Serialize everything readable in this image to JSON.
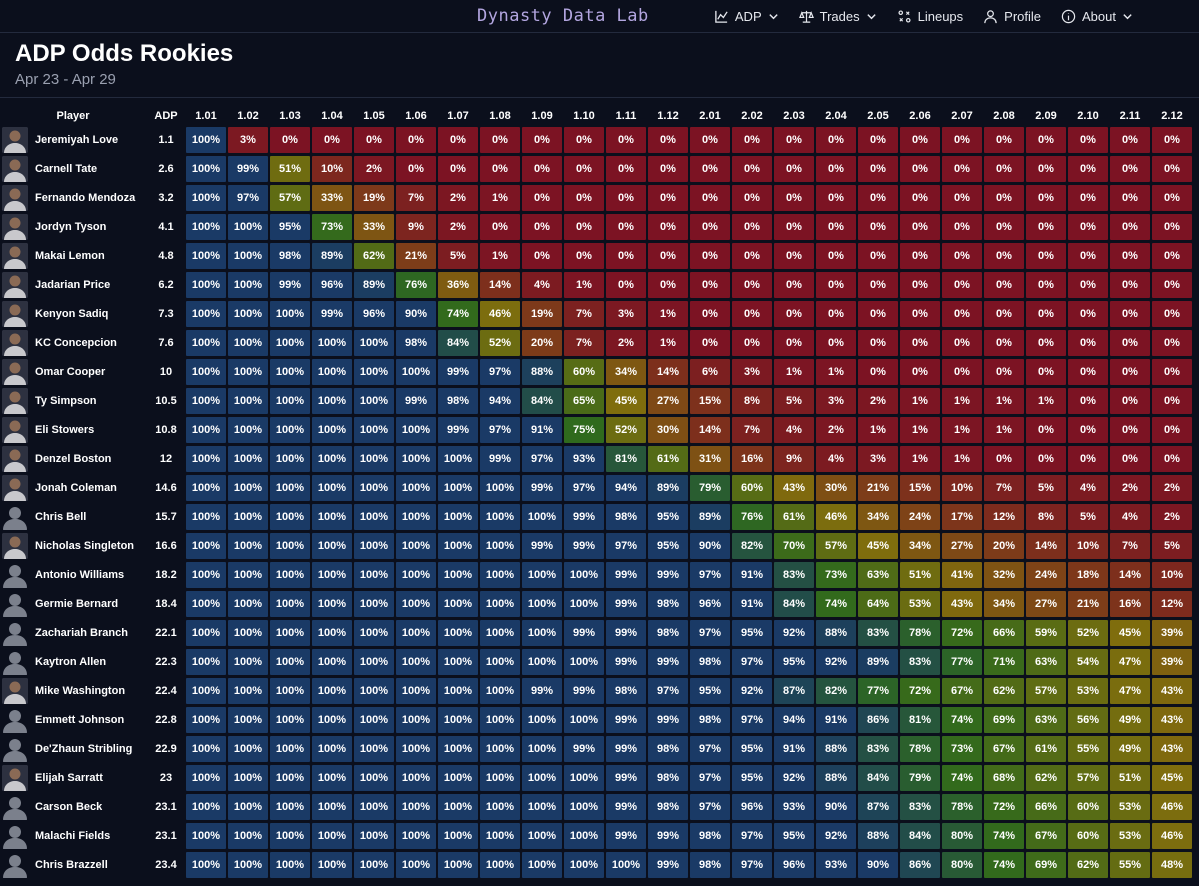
{
  "app": {
    "brand": "Dynasty Data Lab"
  },
  "nav": [
    {
      "label": "ADP",
      "icon": "chart-line-icon",
      "dropdown": true
    },
    {
      "label": "Trades",
      "icon": "scale-icon",
      "dropdown": true
    },
    {
      "label": "Lineups",
      "icon": "lineups-icon",
      "dropdown": false
    },
    {
      "label": "Profile",
      "icon": "user-icon",
      "dropdown": false
    },
    {
      "label": "About",
      "icon": "info-icon",
      "dropdown": true
    }
  ],
  "page": {
    "title": "ADP Odds Rookies",
    "date_range": "Apr 23 - Apr 29"
  },
  "table": {
    "player_header": "Player",
    "adp_header": "ADP",
    "picks": [
      "1.01",
      "1.02",
      "1.03",
      "1.04",
      "1.05",
      "1.06",
      "1.07",
      "1.08",
      "1.09",
      "1.10",
      "1.11",
      "1.12",
      "2.01",
      "2.02",
      "2.03",
      "2.04",
      "2.05",
      "2.06",
      "2.07",
      "2.08",
      "2.09",
      "2.10",
      "2.11",
      "2.12"
    ],
    "rows": [
      {
        "name": "Jeremiyah Love",
        "adp": "1.1",
        "photo": true,
        "odds": [
          100,
          3,
          0,
          0,
          0,
          0,
          0,
          0,
          0,
          0,
          0,
          0,
          0,
          0,
          0,
          0,
          0,
          0,
          0,
          0,
          0,
          0,
          0,
          0
        ]
      },
      {
        "name": "Carnell Tate",
        "adp": "2.6",
        "photo": true,
        "odds": [
          100,
          99,
          51,
          10,
          2,
          0,
          0,
          0,
          0,
          0,
          0,
          0,
          0,
          0,
          0,
          0,
          0,
          0,
          0,
          0,
          0,
          0,
          0,
          0
        ]
      },
      {
        "name": "Fernando Mendoza",
        "adp": "3.2",
        "photo": true,
        "odds": [
          100,
          97,
          57,
          33,
          19,
          7,
          2,
          1,
          0,
          0,
          0,
          0,
          0,
          0,
          0,
          0,
          0,
          0,
          0,
          0,
          0,
          0,
          0,
          0
        ]
      },
      {
        "name": "Jordyn Tyson",
        "adp": "4.1",
        "photo": true,
        "odds": [
          100,
          100,
          95,
          73,
          33,
          9,
          2,
          0,
          0,
          0,
          0,
          0,
          0,
          0,
          0,
          0,
          0,
          0,
          0,
          0,
          0,
          0,
          0,
          0
        ]
      },
      {
        "name": "Makai Lemon",
        "adp": "4.8",
        "photo": true,
        "odds": [
          100,
          100,
          98,
          89,
          62,
          21,
          5,
          1,
          0,
          0,
          0,
          0,
          0,
          0,
          0,
          0,
          0,
          0,
          0,
          0,
          0,
          0,
          0,
          0
        ]
      },
      {
        "name": "Jadarian Price",
        "adp": "6.2",
        "photo": true,
        "odds": [
          100,
          100,
          99,
          96,
          89,
          76,
          36,
          14,
          4,
          1,
          0,
          0,
          0,
          0,
          0,
          0,
          0,
          0,
          0,
          0,
          0,
          0,
          0,
          0
        ]
      },
      {
        "name": "Kenyon Sadiq",
        "adp": "7.3",
        "photo": true,
        "odds": [
          100,
          100,
          100,
          99,
          96,
          90,
          74,
          46,
          19,
          7,
          3,
          1,
          0,
          0,
          0,
          0,
          0,
          0,
          0,
          0,
          0,
          0,
          0,
          0
        ]
      },
      {
        "name": "KC Concepcion",
        "adp": "7.6",
        "photo": true,
        "odds": [
          100,
          100,
          100,
          100,
          100,
          98,
          84,
          52,
          20,
          7,
          2,
          1,
          0,
          0,
          0,
          0,
          0,
          0,
          0,
          0,
          0,
          0,
          0,
          0
        ]
      },
      {
        "name": "Omar Cooper",
        "adp": "10",
        "photo": true,
        "odds": [
          100,
          100,
          100,
          100,
          100,
          100,
          99,
          97,
          88,
          60,
          34,
          14,
          6,
          3,
          1,
          1,
          0,
          0,
          0,
          0,
          0,
          0,
          0,
          0
        ]
      },
      {
        "name": "Ty Simpson",
        "adp": "10.5",
        "photo": true,
        "odds": [
          100,
          100,
          100,
          100,
          100,
          99,
          98,
          94,
          84,
          65,
          45,
          27,
          15,
          8,
          5,
          3,
          2,
          1,
          1,
          1,
          1,
          0,
          0,
          0
        ]
      },
      {
        "name": "Eli Stowers",
        "adp": "10.8",
        "photo": true,
        "odds": [
          100,
          100,
          100,
          100,
          100,
          100,
          99,
          97,
          91,
          75,
          52,
          30,
          14,
          7,
          4,
          2,
          1,
          1,
          1,
          1,
          0,
          0,
          0,
          0
        ]
      },
      {
        "name": "Denzel Boston",
        "adp": "12",
        "photo": true,
        "odds": [
          100,
          100,
          100,
          100,
          100,
          100,
          100,
          99,
          97,
          93,
          81,
          61,
          31,
          16,
          9,
          4,
          3,
          1,
          1,
          0,
          0,
          0,
          0,
          0
        ]
      },
      {
        "name": "Jonah Coleman",
        "adp": "14.6",
        "photo": true,
        "odds": [
          100,
          100,
          100,
          100,
          100,
          100,
          100,
          100,
          99,
          97,
          94,
          89,
          79,
          60,
          43,
          30,
          21,
          15,
          10,
          7,
          5,
          4,
          2,
          2
        ]
      },
      {
        "name": "Chris Bell",
        "adp": "15.7",
        "photo": false,
        "odds": [
          100,
          100,
          100,
          100,
          100,
          100,
          100,
          100,
          100,
          99,
          98,
          95,
          89,
          76,
          61,
          46,
          34,
          24,
          17,
          12,
          8,
          5,
          4,
          2
        ]
      },
      {
        "name": "Nicholas Singleton",
        "adp": "16.6",
        "photo": true,
        "odds": [
          100,
          100,
          100,
          100,
          100,
          100,
          100,
          100,
          99,
          99,
          97,
          95,
          90,
          82,
          70,
          57,
          45,
          34,
          27,
          20,
          14,
          10,
          7,
          5
        ]
      },
      {
        "name": "Antonio Williams",
        "adp": "18.2",
        "photo": false,
        "odds": [
          100,
          100,
          100,
          100,
          100,
          100,
          100,
          100,
          100,
          100,
          99,
          99,
          97,
          91,
          83,
          73,
          63,
          51,
          41,
          32,
          24,
          18,
          14,
          10
        ]
      },
      {
        "name": "Germie Bernard",
        "adp": "18.4",
        "photo": false,
        "odds": [
          100,
          100,
          100,
          100,
          100,
          100,
          100,
          100,
          100,
          100,
          99,
          98,
          96,
          91,
          84,
          74,
          64,
          53,
          43,
          34,
          27,
          21,
          16,
          12
        ]
      },
      {
        "name": "Zachariah Branch",
        "adp": "22.1",
        "photo": false,
        "odds": [
          100,
          100,
          100,
          100,
          100,
          100,
          100,
          100,
          100,
          99,
          99,
          98,
          97,
          95,
          92,
          88,
          83,
          78,
          72,
          66,
          59,
          52,
          45,
          39
        ]
      },
      {
        "name": "Kaytron Allen",
        "adp": "22.3",
        "photo": false,
        "odds": [
          100,
          100,
          100,
          100,
          100,
          100,
          100,
          100,
          100,
          100,
          99,
          99,
          98,
          97,
          95,
          92,
          89,
          83,
          77,
          71,
          63,
          54,
          47,
          39
        ]
      },
      {
        "name": "Mike Washington",
        "adp": "22.4",
        "photo": true,
        "odds": [
          100,
          100,
          100,
          100,
          100,
          100,
          100,
          100,
          99,
          99,
          98,
          97,
          95,
          92,
          87,
          82,
          77,
          72,
          67,
          62,
          57,
          53,
          47,
          43
        ]
      },
      {
        "name": "Emmett Johnson",
        "adp": "22.8",
        "photo": false,
        "odds": [
          100,
          100,
          100,
          100,
          100,
          100,
          100,
          100,
          100,
          100,
          99,
          99,
          98,
          97,
          94,
          91,
          86,
          81,
          74,
          69,
          63,
          56,
          49,
          43
        ]
      },
      {
        "name": "De'Zhaun Stribling",
        "adp": "22.9",
        "photo": false,
        "odds": [
          100,
          100,
          100,
          100,
          100,
          100,
          100,
          100,
          100,
          99,
          99,
          98,
          97,
          95,
          91,
          88,
          83,
          78,
          73,
          67,
          61,
          55,
          49,
          43
        ]
      },
      {
        "name": "Elijah Sarratt",
        "adp": "23",
        "photo": true,
        "odds": [
          100,
          100,
          100,
          100,
          100,
          100,
          100,
          100,
          100,
          100,
          99,
          98,
          97,
          95,
          92,
          88,
          84,
          79,
          74,
          68,
          62,
          57,
          51,
          45
        ]
      },
      {
        "name": "Carson Beck",
        "adp": "23.1",
        "photo": false,
        "odds": [
          100,
          100,
          100,
          100,
          100,
          100,
          100,
          100,
          100,
          100,
          99,
          98,
          97,
          96,
          93,
          90,
          87,
          83,
          78,
          72,
          66,
          60,
          53,
          46
        ]
      },
      {
        "name": "Malachi Fields",
        "adp": "23.1",
        "photo": false,
        "odds": [
          100,
          100,
          100,
          100,
          100,
          100,
          100,
          100,
          100,
          100,
          99,
          99,
          98,
          97,
          95,
          92,
          88,
          84,
          80,
          74,
          67,
          60,
          53,
          46
        ]
      },
      {
        "name": "Chris Brazzell",
        "adp": "23.4",
        "photo": false,
        "odds": [
          100,
          100,
          100,
          100,
          100,
          100,
          100,
          100,
          100,
          100,
          100,
          99,
          98,
          97,
          96,
          93,
          90,
          86,
          80,
          74,
          69,
          62,
          55,
          48
        ]
      }
    ]
  },
  "scale_colors": {
    "low": "#7c1323",
    "mid": "#7f6d0d",
    "green": "#2f6a1d",
    "high": "#1a3a66"
  }
}
